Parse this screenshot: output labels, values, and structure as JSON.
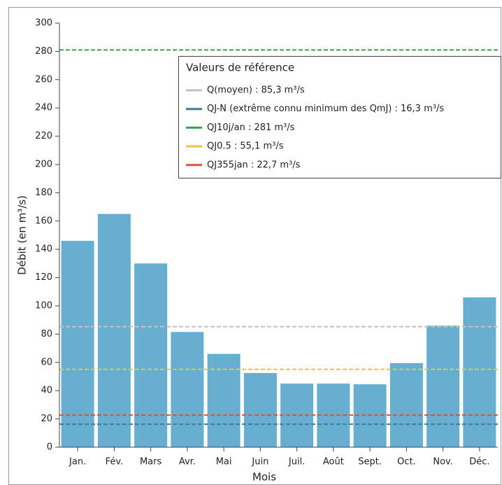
{
  "chart_data": {
    "type": "bar",
    "categories": [
      "Jan.",
      "Fév.",
      "Mars",
      "Avr.",
      "Mai",
      "Juin",
      "Juil.",
      "Août",
      "Sept.",
      "Oct.",
      "Nov.",
      "Déc."
    ],
    "values": [
      146,
      165,
      130,
      81.5,
      66,
      52.5,
      45,
      45,
      44.5,
      59.5,
      86,
      106
    ],
    "color": "#67aed0",
    "ylim": [
      0,
      300
    ],
    "yticks": [
      0,
      20,
      40,
      60,
      80,
      100,
      120,
      140,
      160,
      180,
      200,
      220,
      240,
      260,
      280,
      300
    ],
    "y_label": "Débit (en m³/s)",
    "x_label": "Mois",
    "legend_title": "Valeurs de référence",
    "reference_lines": [
      {
        "label": "Q(moyen) : 85,3 m³/s",
        "value": 85.3,
        "color": "#c2c2c2"
      },
      {
        "label": "QJ-N (extrême connu minimum des QmJ) : 16,3 m³/s",
        "value": 16.3,
        "color": "#3d7e9a"
      },
      {
        "label": "QJ10j/an : 281 m³/s",
        "value": 281,
        "color": "#3aa04a"
      },
      {
        "label": "QJ0.5 : 55,1 m³/s",
        "value": 55.1,
        "color": "#e8c640"
      },
      {
        "label": "QJ355jan : 22,7 m³/s",
        "value": 22.7,
        "color": "#d9553a"
      }
    ]
  }
}
